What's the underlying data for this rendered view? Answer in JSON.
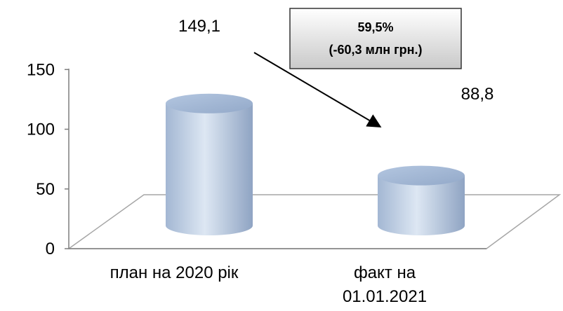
{
  "chart_data": {
    "type": "bar",
    "style": "3d-cylinder",
    "categories": [
      "план на 2020 рік",
      "факт на 01.01.2021"
    ],
    "category_lines": [
      [
        "план на 2020 рік"
      ],
      [
        "факт на",
        "01.01.2021"
      ]
    ],
    "values": [
      149.1,
      88.8
    ],
    "value_labels": [
      "149,1",
      "88,8"
    ],
    "yticks": [
      0,
      50,
      100,
      150
    ],
    "ylim": [
      0,
      150
    ],
    "grid": false,
    "legend": "none",
    "bar_color": "#a9bedc",
    "annotation": {
      "lines": [
        "59,5%",
        "(-60,3 млн грн.)"
      ],
      "arrow_from": "bar-1-top",
      "arrow_to": "bar-2-top"
    }
  }
}
